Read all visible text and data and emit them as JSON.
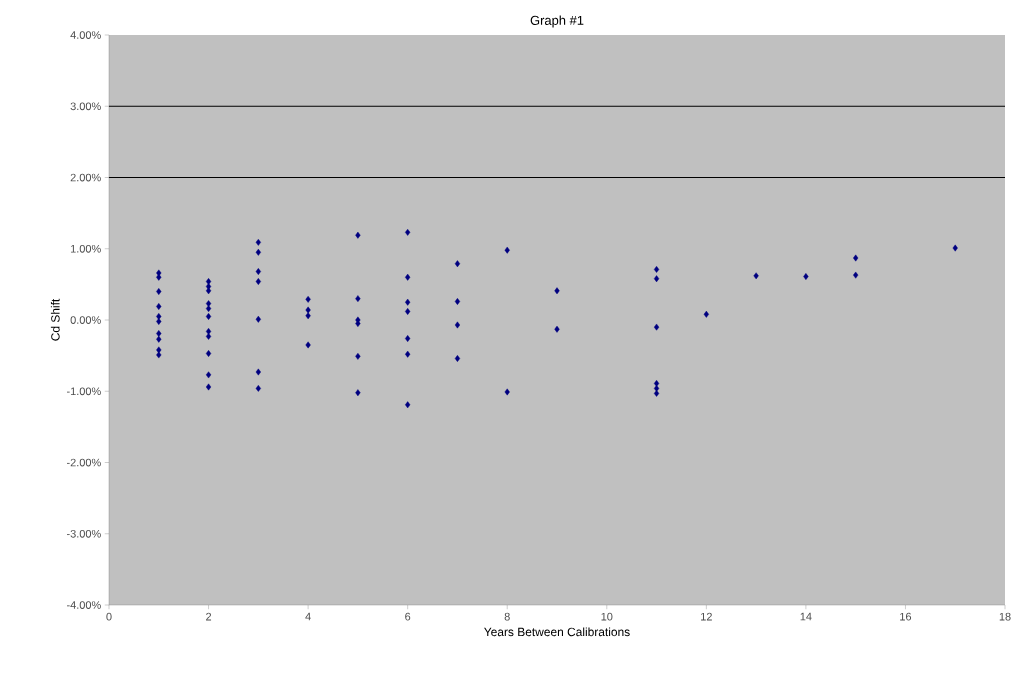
{
  "chart_data": {
    "type": "scatter",
    "title": "Graph #1",
    "xlabel": "Years Between Calibrations",
    "ylabel": "Cd Shift",
    "series": [
      {
        "color": "#000080",
        "x": [
          1,
          1,
          1,
          1,
          1,
          1,
          1,
          1,
          1,
          1,
          2,
          2,
          2,
          2,
          2,
          2,
          2,
          2,
          2,
          2,
          2,
          3,
          3,
          3,
          3,
          3,
          3,
          3,
          4,
          4,
          4,
          4,
          5,
          5,
          5,
          5,
          5,
          5,
          6,
          6,
          6,
          6,
          6,
          6,
          6,
          7,
          7,
          7,
          7,
          8,
          8,
          9,
          9,
          11,
          11,
          11,
          11,
          11,
          11,
          12,
          13,
          14,
          15,
          15,
          17
        ],
        "values": [
          0.66,
          0.6,
          0.4,
          0.19,
          0.05,
          -0.02,
          -0.19,
          -0.27,
          -0.42,
          -0.49,
          0.54,
          0.47,
          0.41,
          0.23,
          0.16,
          0.05,
          -0.16,
          -0.23,
          -0.47,
          -0.77,
          -0.94,
          1.09,
          0.95,
          0.68,
          0.54,
          0.01,
          -0.73,
          -0.96,
          0.29,
          0.14,
          0.06,
          -0.35,
          1.19,
          0.3,
          0,
          -0.05,
          -0.51,
          -1.02,
          1.23,
          0.6,
          0.25,
          0.12,
          -0.26,
          -0.48,
          -1.19,
          0.79,
          0.26,
          -0.07,
          -0.54,
          0.98,
          -1.01,
          0.41,
          -0.13,
          0.71,
          0.58,
          -0.1,
          -0.89,
          -0.96,
          -1.03,
          0.08,
          0.62,
          0.61,
          0.87,
          0.63,
          1.01
        ]
      }
    ],
    "marker": "diamond",
    "xlim": [
      0,
      18
    ],
    "xticks": [
      0,
      2,
      4,
      6,
      8,
      10,
      12,
      14,
      16,
      18
    ],
    "ylim": [
      -4,
      4
    ],
    "yticks": [
      {
        "value": -4,
        "label": "-4.00%"
      },
      {
        "value": -3,
        "label": "-3.00%"
      },
      {
        "value": -2,
        "label": "-2.00%"
      },
      {
        "value": -1,
        "label": "-1.00%"
      },
      {
        "value": 0,
        "label": "0.00%"
      },
      {
        "value": 1,
        "label": "1.00%"
      },
      {
        "value": 2,
        "label": "2.00%"
      },
      {
        "value": 3,
        "label": "3.00%"
      },
      {
        "value": 4,
        "label": "4.00%"
      }
    ],
    "ref_lines": [
      {
        "axis": "y",
        "value": 3,
        "color": "#000000"
      },
      {
        "axis": "y",
        "value": 2,
        "color": "#000000"
      }
    ]
  }
}
